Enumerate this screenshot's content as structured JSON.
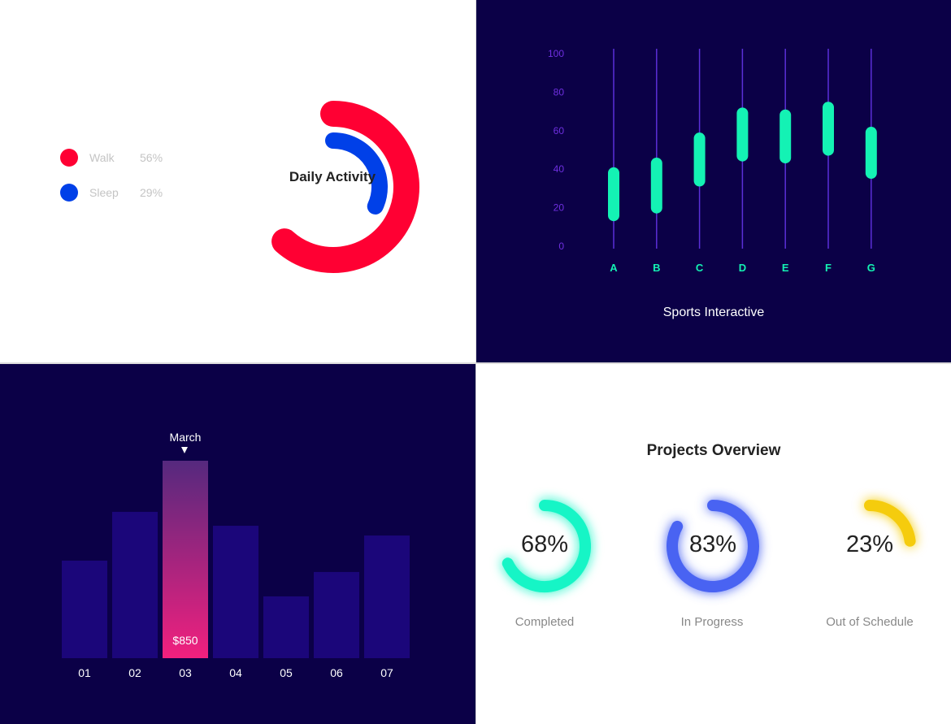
{
  "daily_activity": {
    "title": "Daily Activity",
    "legend": [
      {
        "label": "Walk",
        "value": "56%",
        "color": "#ff0033"
      },
      {
        "label": "Sleep",
        "value": "29%",
        "color": "#0040e8"
      }
    ]
  },
  "sports": {
    "title": "Sports Interactive"
  },
  "revenue": {
    "highlight_label": "March",
    "highlight_value": "$850"
  },
  "projects": {
    "title": "Projects Overview",
    "items": [
      {
        "label": "Completed",
        "value": "68%",
        "color": "#19f5c6"
      },
      {
        "label": "In Progress",
        "value": "83%",
        "color": "#4a63f2"
      },
      {
        "label": "Out of Schedule",
        "value": "23%",
        "color": "#f5cc0a"
      }
    ]
  },
  "chart_data": [
    {
      "type": "pie",
      "title": "Daily Activity",
      "style": "radial-rings",
      "categories": [
        "Walk",
        "Sleep"
      ],
      "values": [
        56,
        29
      ],
      "colors": [
        "#ff0033",
        "#0040e8"
      ],
      "legend": "left"
    },
    {
      "type": "bar",
      "style": "floating-range",
      "title": "Sports Interactive",
      "categories": [
        "A",
        "B",
        "C",
        "D",
        "E",
        "F",
        "G"
      ],
      "ranges": [
        [
          13,
          41
        ],
        [
          17,
          46
        ],
        [
          31,
          59
        ],
        [
          44,
          72
        ],
        [
          43,
          71
        ],
        [
          47,
          75
        ],
        [
          35,
          62
        ]
      ],
      "yticks": [
        "0",
        "20",
        "40",
        "60",
        "80",
        "100"
      ],
      "ylim": [
        0,
        100
      ],
      "grid": "vertical",
      "colors": {
        "bar": "#14f2b4",
        "grid": "#5b2fd8",
        "tick": "#6f2fe0"
      }
    },
    {
      "type": "bar",
      "categories": [
        "01",
        "02",
        "03",
        "04",
        "05",
        "06",
        "07"
      ],
      "values": [
        420,
        630,
        850,
        570,
        266,
        371,
        528
      ],
      "highlight_index": 2,
      "highlight_label": "March",
      "data_labels": {
        "03": "$850"
      },
      "colors": {
        "bar": "#1b067a",
        "highlight_top": "#55297e",
        "highlight_bottom": "#f2207e"
      }
    },
    {
      "type": "pie",
      "style": "progress-rings",
      "title": "Projects Overview",
      "categories": [
        "Completed",
        "In Progress",
        "Out of Schedule"
      ],
      "values": [
        68,
        83,
        23
      ],
      "colors": [
        "#19f5c6",
        "#4a63f2",
        "#f5cc0a"
      ]
    }
  ]
}
